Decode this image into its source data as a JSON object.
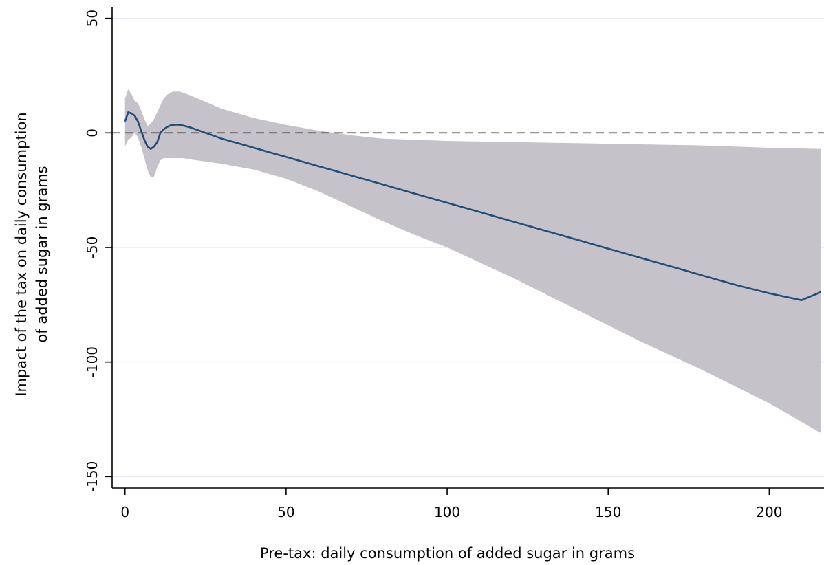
{
  "chart_data": {
    "type": "line",
    "title": "",
    "xlabel": "Pre-tax: daily consumption of added sugar in grams",
    "ylabel_lines": [
      "Impact of the tax on daily consumption",
      "of added sugar in grams"
    ],
    "xlim": [
      -4,
      217
    ],
    "ylim": [
      -155,
      55
    ],
    "xticks": [
      0,
      50,
      100,
      150,
      200
    ],
    "yticks": [
      50,
      0,
      -50,
      -100,
      -150
    ],
    "xtick_labels": [
      "0",
      "50",
      "100",
      "150",
      "200"
    ],
    "ytick_labels": [
      "50",
      "0",
      "-50",
      "-100",
      "-150"
    ],
    "gridlines": "horizontal",
    "reference_line": {
      "y": 0,
      "style": "dashed"
    },
    "colors": {
      "line": "#1f4e79",
      "band": "#c5c3c9",
      "grid": "#e8eaf2",
      "axis": "#000000",
      "reference": "#333333"
    },
    "series": [
      {
        "x": [
          0,
          1,
          2,
          3,
          4,
          5,
          6,
          7,
          8,
          9,
          10,
          11,
          12,
          13,
          14,
          15,
          16,
          17,
          18,
          20,
          22,
          25,
          28,
          30,
          35,
          40,
          45,
          50,
          55,
          60,
          65,
          70,
          80,
          90,
          100,
          110,
          120,
          130,
          140,
          150,
          160,
          170,
          180,
          190,
          200,
          210,
          216
        ],
        "y": [
          5,
          9,
          8.5,
          7.5,
          5,
          1,
          -3,
          -6,
          -7,
          -6,
          -4,
          0,
          1.5,
          2.5,
          3.2,
          3.5,
          3.6,
          3.5,
          3.2,
          2.5,
          1.5,
          0,
          -1.5,
          -2.5,
          -4.5,
          -6.5,
          -8.5,
          -10.5,
          -12.5,
          -14.5,
          -16.5,
          -18.5,
          -22.5,
          -26.5,
          -30.5,
          -34.5,
          -38.5,
          -42.5,
          -46.5,
          -50.5,
          -54.5,
          -58.5,
          -62.5,
          -66.5,
          -70,
          -73,
          -69.5
        ]
      }
    ],
    "ci_band": {
      "x": [
        0,
        1,
        2,
        3,
        4,
        5,
        6,
        7,
        8,
        9,
        10,
        11,
        12,
        13,
        14,
        15,
        16,
        17,
        18,
        20,
        25,
        30,
        40,
        50,
        60,
        70,
        80,
        90,
        100,
        120,
        140,
        160,
        180,
        200,
        216
      ],
      "upper": [
        15,
        19,
        17,
        14,
        13,
        10,
        6,
        3,
        4,
        6,
        9,
        12,
        15,
        16.5,
        17.5,
        18,
        18,
        18,
        17.5,
        16.5,
        13.5,
        10.5,
        6.5,
        3.5,
        1,
        -1,
        -2.5,
        -3,
        -3.5,
        -4,
        -4.5,
        -5,
        -5.5,
        -6.5,
        -7
      ],
      "lower": [
        -6,
        -3,
        -2,
        0,
        -2,
        -6,
        -11,
        -16,
        -19.5,
        -19,
        -15,
        -12,
        -11,
        -11,
        -11,
        -11,
        -11,
        -11,
        -11,
        -11.5,
        -12.5,
        -13.5,
        -16,
        -20,
        -25.5,
        -32,
        -38.5,
        -44.5,
        -50,
        -63,
        -77,
        -91,
        -104,
        -118,
        -131
      ]
    }
  }
}
